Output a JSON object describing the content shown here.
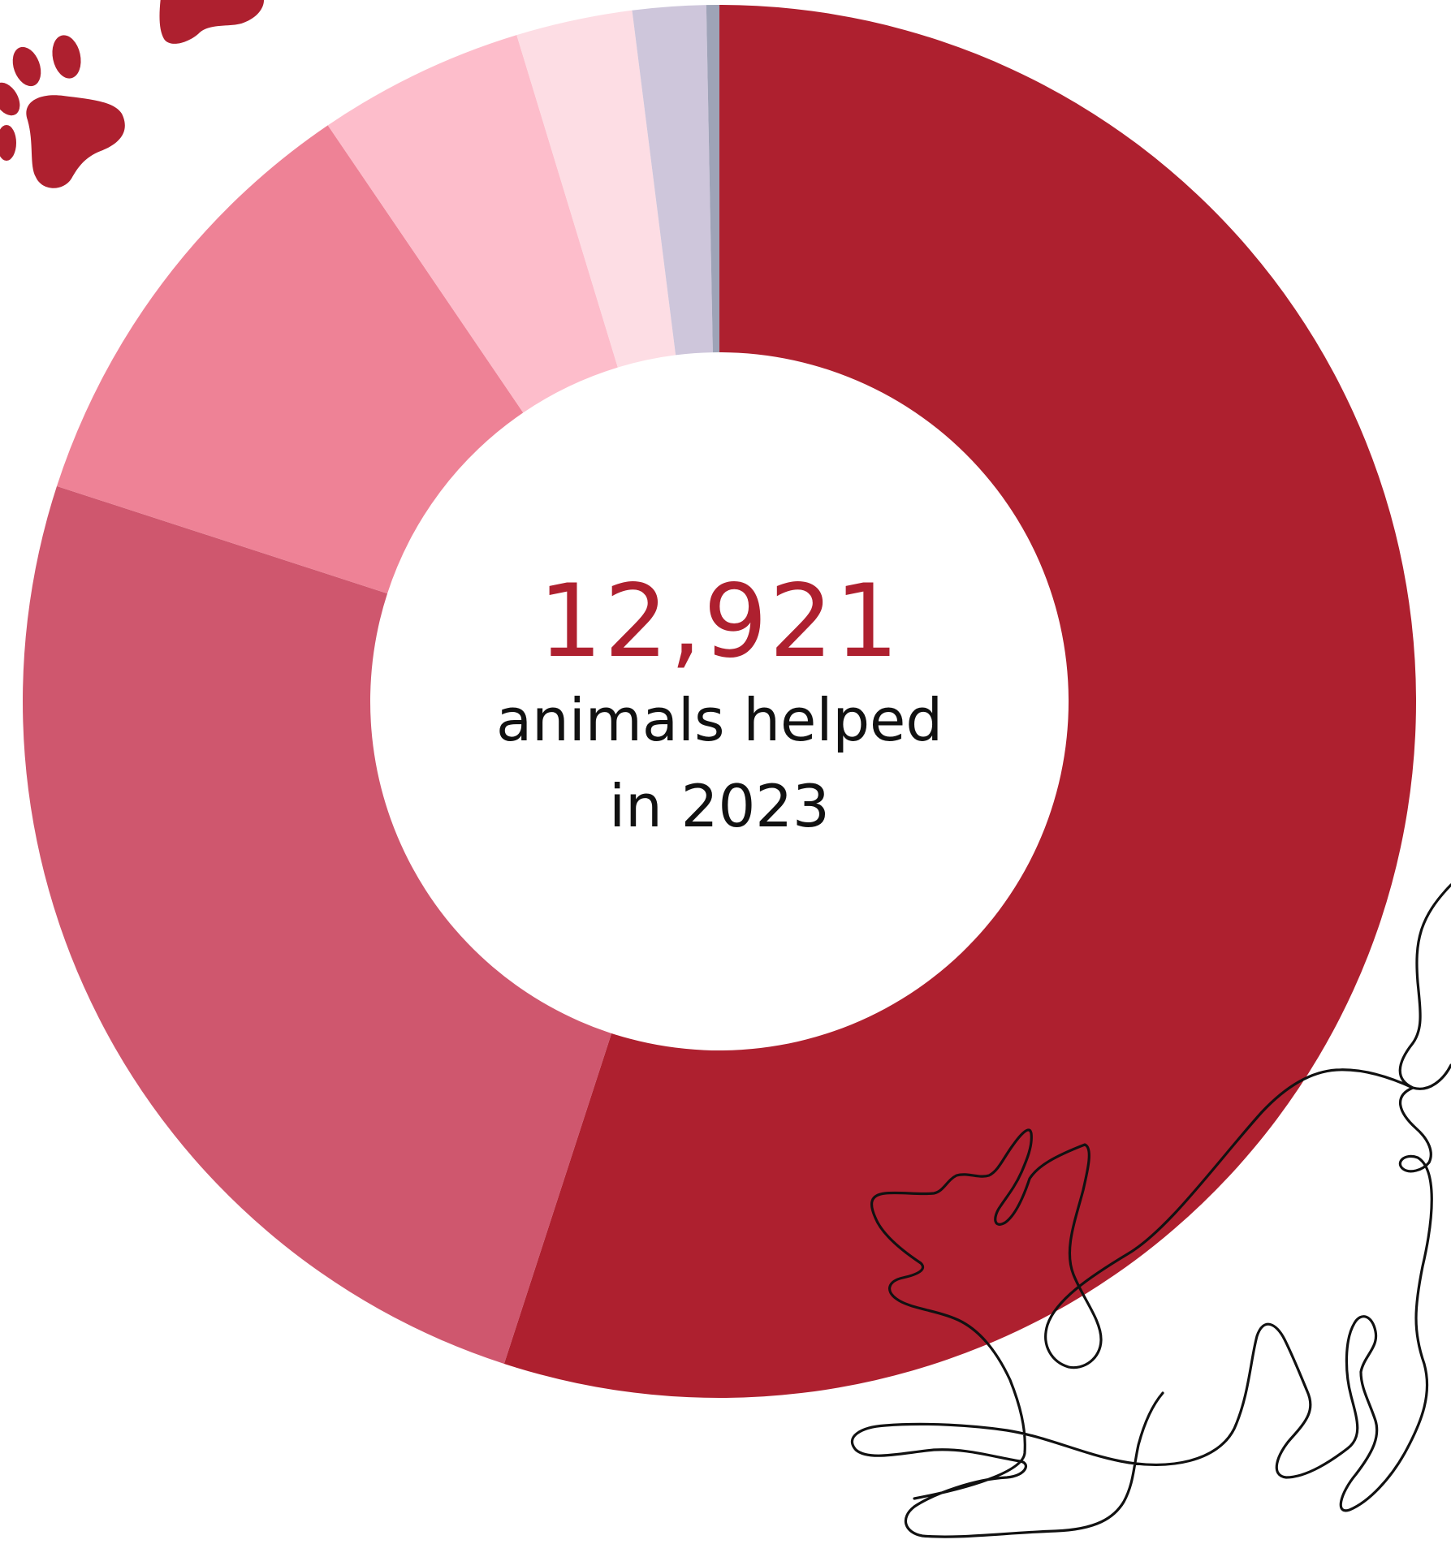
{
  "colors": {
    "accent": "#ae202f",
    "paw": "#ae202f",
    "line_art": "#111111",
    "background": "#ffffff"
  },
  "center": {
    "number": "12,921",
    "line1": "animals helped",
    "line2": "in 2023"
  },
  "decorations": {
    "paw_icon": "paw-print-icon",
    "cat_icon": "cat-line-art-icon"
  },
  "chart_data": {
    "type": "donut",
    "title": "",
    "total": 12921,
    "slices": [
      {
        "share": 0.55,
        "color": "#ae202f"
      },
      {
        "share": 0.25,
        "color": "#cf576e"
      },
      {
        "share": 0.105,
        "color": "#ee8296"
      },
      {
        "share": 0.048,
        "color": "#fdbdcb"
      },
      {
        "share": 0.027,
        "color": "#fddde4"
      },
      {
        "share": 0.017,
        "color": "#cec6db"
      },
      {
        "share": 0.003,
        "color": "#9ea3b7"
      }
    ]
  }
}
